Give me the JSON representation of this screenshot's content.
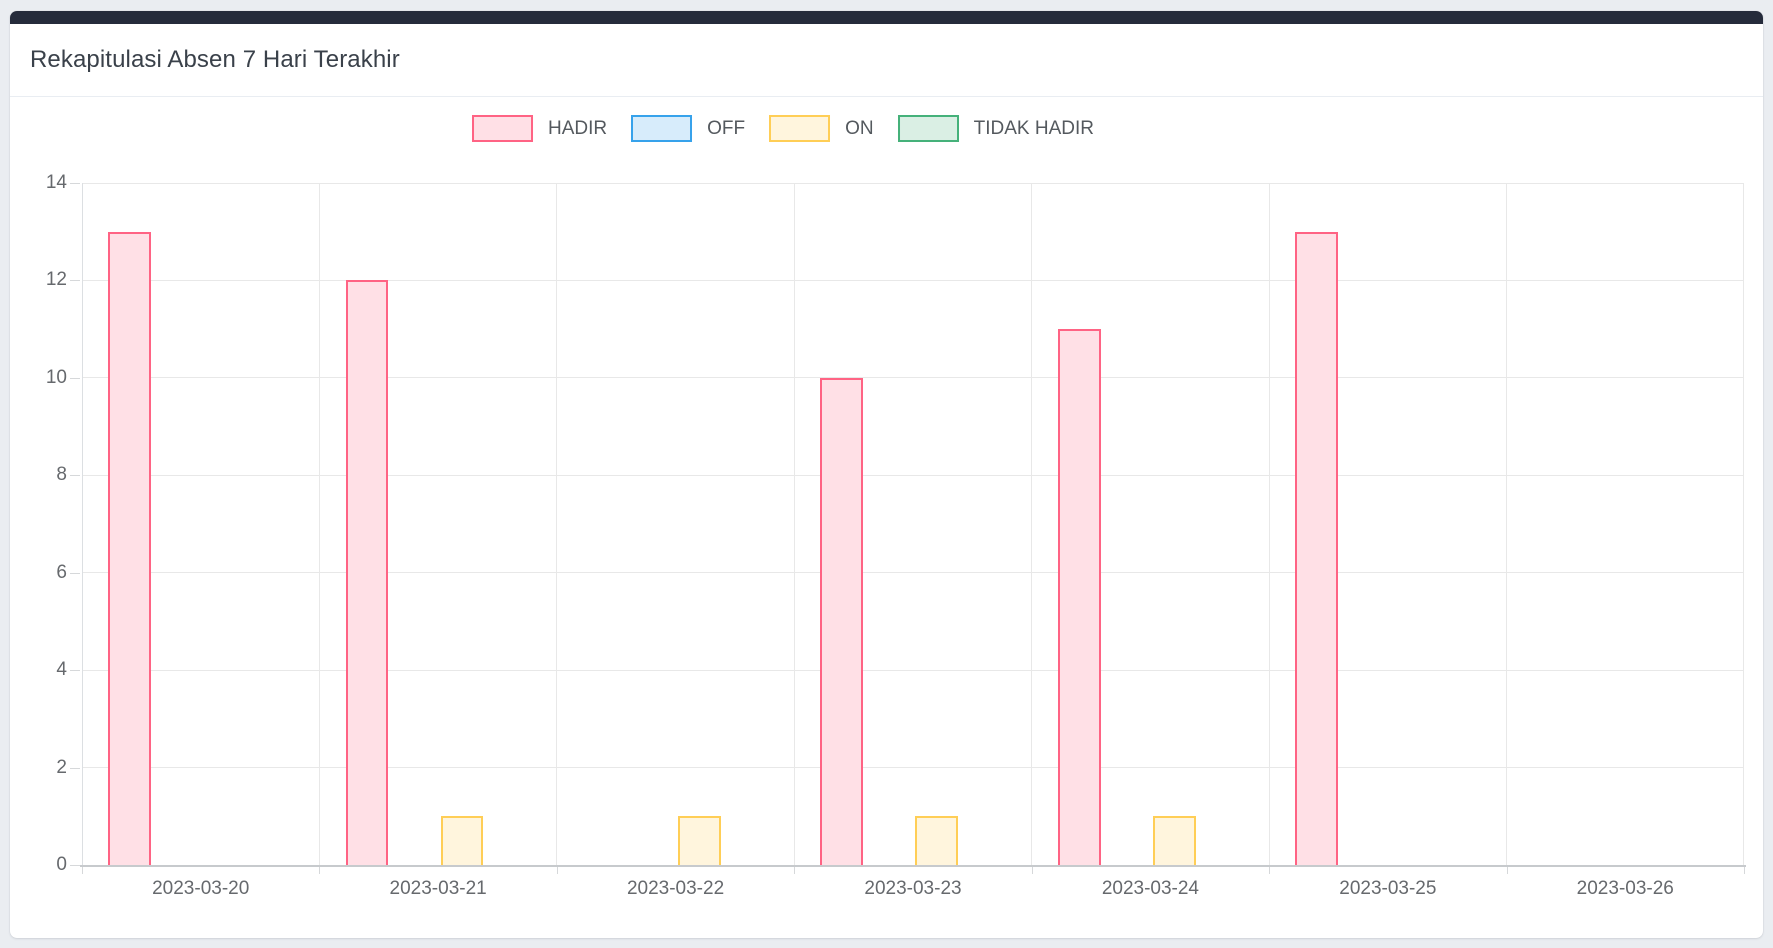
{
  "page": {
    "background_color": "#eaedf1"
  },
  "card": {
    "accent_color": "#252b3b",
    "header": {
      "title": "Rekapitulasi Absen 7 Hari Terakhir"
    }
  },
  "chart_data": {
    "type": "bar",
    "title": "Rekapitulasi Absen 7 Hari Terakhir",
    "categories": [
      "2023-03-20",
      "2023-03-21",
      "2023-03-22",
      "2023-03-23",
      "2023-03-24",
      "2023-03-25",
      "2023-03-26"
    ],
    "series": [
      {
        "name": "HADIR",
        "border_color": "#ff6384",
        "fill_color": "#ffe0e6",
        "values": [
          13,
          12,
          0,
          10,
          11,
          13,
          0
        ]
      },
      {
        "name": "OFF",
        "border_color": "#36a2eb",
        "fill_color": "#d7ecfb",
        "values": [
          0,
          0,
          0,
          0,
          0,
          0,
          0
        ]
      },
      {
        "name": "ON",
        "border_color": "#ffce56",
        "fill_color": "#fff5dd",
        "values": [
          0,
          1,
          1,
          1,
          1,
          0,
          0
        ]
      },
      {
        "name": "TIDAK HADIR",
        "border_color": "#45b17a",
        "fill_color": "#daefe4",
        "values": [
          0,
          0,
          0,
          0,
          0,
          0,
          0
        ]
      }
    ],
    "xlabel": "",
    "ylabel": "",
    "ylim": [
      0,
      14
    ],
    "ytick_step": 2,
    "grid": true,
    "legend_position": "top-center",
    "legend": [
      "HADIR",
      "OFF",
      "ON",
      "TIDAK HADIR"
    ]
  }
}
